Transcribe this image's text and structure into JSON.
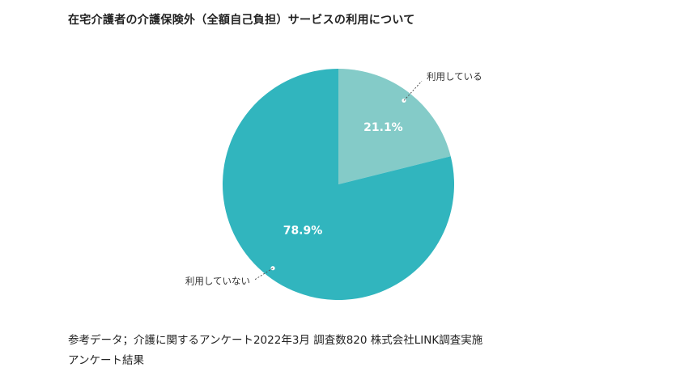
{
  "chart_data": {
    "type": "pie",
    "title": "在宅介護者の介護保険外（全額自己負担）サービスの利用について",
    "slices": [
      {
        "name": "利用している",
        "value": 21.1,
        "label": "21.1%",
        "color": "#84cbc8"
      },
      {
        "name": "利用していない",
        "value": 78.9,
        "label": "78.9%",
        "color": "#31b5be"
      }
    ],
    "start_angle_deg": 0,
    "direction": "clockwise",
    "legend": "none"
  },
  "captions": {
    "line1": "参考データ；介護に関するアンケート2022年3月 調査数820 株式会社LINK調査実施",
    "line2": "アンケート結果"
  }
}
